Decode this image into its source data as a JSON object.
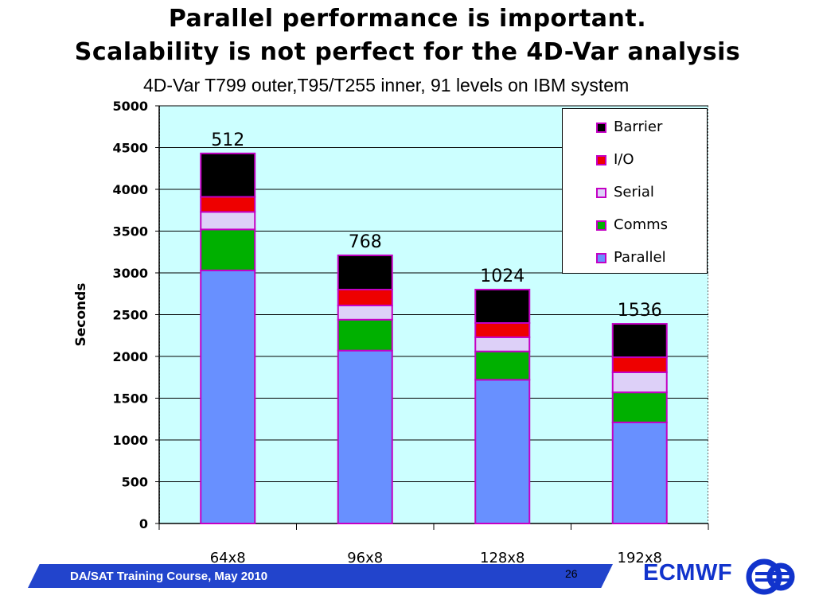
{
  "slide": {
    "title_line1": "Parallel performance is important.",
    "title_line2": "Scalability is not perfect for the 4D-Var analysis",
    "footer_text": "DA/SAT Training Course,  May 2010",
    "page_number": "26",
    "logo_text": "ECMWF"
  },
  "chart_data": {
    "type": "bar",
    "stacked": true,
    "title": "4D-Var T799 outer,T95/T255 inner, 91 levels on IBM system",
    "xlabel": "",
    "ylabel": "Seconds",
    "ylim": [
      0,
      5000
    ],
    "yticks": [
      0,
      500,
      1000,
      1500,
      2000,
      2500,
      3000,
      3500,
      4000,
      4500,
      5000
    ],
    "grid": true,
    "legend_position": "top-right",
    "categories": [
      "64x8",
      "96x8",
      "128x8",
      "192x8"
    ],
    "bar_labels": [
      "512",
      "768",
      "1024",
      "1536"
    ],
    "series": [
      {
        "name": "Parallel",
        "color": "#6890ff",
        "values": [
          3030,
          2070,
          1720,
          1210
        ]
      },
      {
        "name": "Comms",
        "color": "#00b000",
        "values": [
          490,
          370,
          340,
          360
        ]
      },
      {
        "name": "Serial",
        "color": "#ddd0f8",
        "values": [
          210,
          170,
          170,
          240
        ]
      },
      {
        "name": "I/O",
        "color": "#ee0000",
        "values": [
          180,
          190,
          170,
          180
        ]
      },
      {
        "name": "Barrier",
        "color": "#000000",
        "values": [
          520,
          410,
          400,
          400
        ]
      }
    ]
  }
}
